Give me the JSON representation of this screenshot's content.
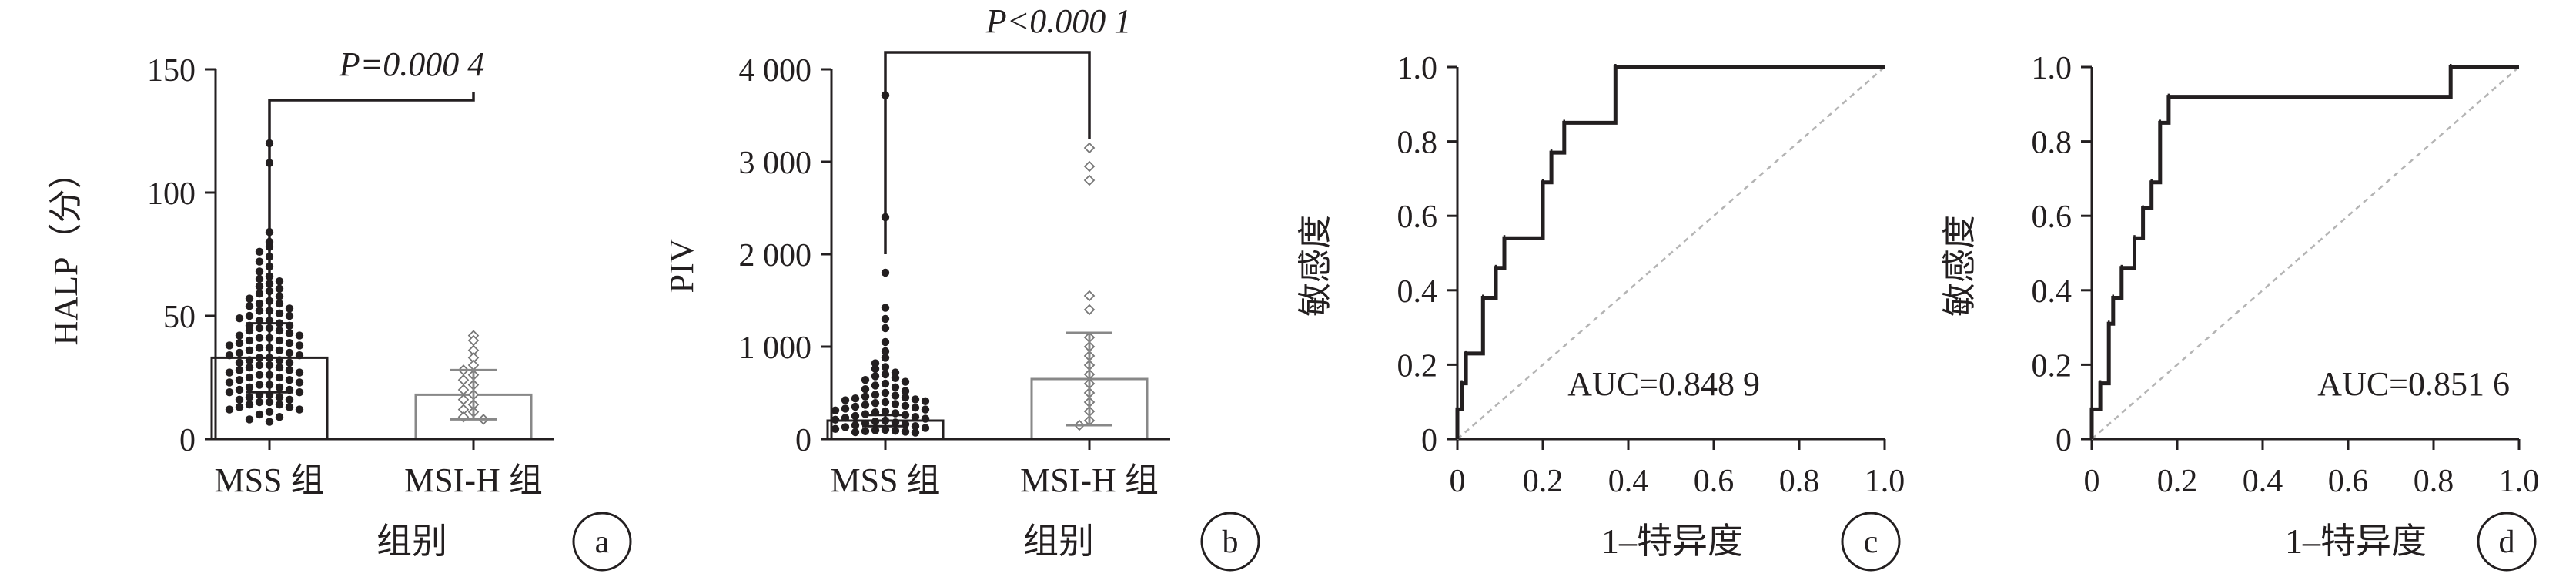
{
  "figure": {
    "background": "#ffffff",
    "ink": "#231f20",
    "diag_color": "#b4b4b4"
  },
  "chart_data": [
    {
      "type": "bar",
      "panel_label": "a",
      "ylabel": "HALP（分）",
      "xlabel": "组别",
      "categories": [
        "MSS 组",
        "MSI-H 组"
      ],
      "values": [
        33,
        18
      ],
      "error_sd": [
        14,
        10
      ],
      "ylim": [
        0,
        150
      ],
      "yticks": [
        0,
        50,
        100,
        150
      ],
      "ytick_labels": [
        "0",
        "50",
        "100",
        "150"
      ],
      "annotation": "P=0.000 4",
      "points": [
        {
          "series": "MSS 组",
          "marker": "filled-dot",
          "values": [
            120,
            112,
            84,
            80,
            78,
            76,
            74,
            72,
            70,
            68,
            66,
            65,
            64,
            63,
            62,
            61,
            60,
            59,
            58,
            57,
            56,
            55,
            55,
            54,
            53,
            52,
            52,
            51,
            50,
            50,
            49,
            48,
            48,
            47,
            46,
            46,
            45,
            45,
            44,
            44,
            43,
            42,
            42,
            41,
            41,
            40,
            40,
            39,
            39,
            38,
            38,
            37,
            37,
            36,
            36,
            35,
            35,
            34,
            34,
            33,
            33,
            32,
            32,
            31,
            31,
            30,
            30,
            29,
            29,
            28,
            28,
            27,
            27,
            26,
            26,
            25,
            25,
            24,
            24,
            23,
            23,
            22,
            22,
            21,
            21,
            20,
            20,
            19,
            19,
            18,
            18,
            17,
            17,
            16,
            16,
            15,
            15,
            14,
            14,
            13,
            13,
            12,
            12,
            11,
            10,
            9,
            8,
            7
          ]
        },
        {
          "series": "MSI-H 组",
          "marker": "open-diamond",
          "values": [
            42,
            40,
            36,
            33,
            30,
            28,
            26,
            24,
            22,
            20,
            18,
            16,
            14,
            12,
            11,
            9,
            8
          ]
        }
      ]
    },
    {
      "type": "bar",
      "panel_label": "b",
      "ylabel": "PIV",
      "xlabel": "组别",
      "categories": [
        "MSS 组",
        "MSI-H 组"
      ],
      "values": [
        200,
        650
      ],
      "error_sd": [
        60,
        500
      ],
      "ylim": [
        0,
        4000
      ],
      "yticks": [
        0,
        1000,
        2000,
        3000,
        4000
      ],
      "ytick_labels": [
        "0",
        "1 000",
        "2 000",
        "3 000",
        "4 000"
      ],
      "annotation": "P<0.000 1",
      "points": [
        {
          "series": "MSS 组",
          "marker": "filled-dot",
          "values": [
            3720,
            2400,
            1800,
            1420,
            1300,
            1200,
            1050,
            950,
            880,
            820,
            780,
            760,
            720,
            700,
            680,
            660,
            640,
            620,
            600,
            580,
            560,
            540,
            520,
            500,
            480,
            470,
            460,
            450,
            440,
            430,
            420,
            410,
            400,
            390,
            380,
            370,
            360,
            350,
            340,
            330,
            320,
            310,
            300,
            290,
            280,
            270,
            260,
            250,
            240,
            230,
            220,
            210,
            200,
            190,
            180,
            170,
            160,
            150,
            140,
            130,
            120,
            110,
            100,
            95,
            90,
            85,
            80,
            75,
            70
          ]
        },
        {
          "series": "MSI-H 组",
          "marker": "open-diamond",
          "values": [
            3150,
            2950,
            2800,
            1550,
            1400,
            1100,
            1000,
            900,
            800,
            700,
            600,
            500,
            400,
            300,
            200,
            150
          ]
        }
      ]
    },
    {
      "type": "line",
      "panel_label": "c",
      "ylabel": "敏感度",
      "xlabel": "1–特异度",
      "xlim": [
        0,
        1
      ],
      "ylim": [
        0,
        1
      ],
      "xtick_labels": [
        "0",
        "0.2",
        "0.4",
        "0.6",
        "0.8",
        "1.0"
      ],
      "ytick_labels": [
        "0",
        "0.2",
        "0.4",
        "0.6",
        "0.8",
        "1.0"
      ],
      "annotation": "AUC=0.848 9",
      "series": [
        {
          "x": [
            0,
            0,
            0.01,
            0.01,
            0.02,
            0.02,
            0.06,
            0.06,
            0.09,
            0.09,
            0.11,
            0.11,
            0.2,
            0.2,
            0.22,
            0.22,
            0.25,
            0.25,
            0.37,
            0.37,
            1.0
          ],
          "y": [
            0,
            0.08,
            0.08,
            0.15,
            0.15,
            0.23,
            0.23,
            0.38,
            0.38,
            0.46,
            0.46,
            0.54,
            0.54,
            0.69,
            0.69,
            0.77,
            0.77,
            0.85,
            0.85,
            1.0,
            1.0
          ]
        }
      ]
    },
    {
      "type": "line",
      "panel_label": "d",
      "ylabel": "敏感度",
      "xlabel": "1–特异度",
      "xlim": [
        0,
        1
      ],
      "ylim": [
        0,
        1
      ],
      "xtick_labels": [
        "0",
        "0.2",
        "0.4",
        "0.6",
        "0.8",
        "1.0"
      ],
      "ytick_labels": [
        "0",
        "0.2",
        "0.4",
        "0.6",
        "0.8",
        "1.0"
      ],
      "annotation": "AUC=0.851 6",
      "series": [
        {
          "x": [
            0,
            0,
            0.02,
            0.02,
            0.04,
            0.04,
            0.05,
            0.05,
            0.07,
            0.07,
            0.1,
            0.1,
            0.12,
            0.12,
            0.14,
            0.14,
            0.16,
            0.16,
            0.18,
            0.18,
            0.84,
            0.84,
            1.0
          ],
          "y": [
            0,
            0.08,
            0.08,
            0.15,
            0.15,
            0.31,
            0.31,
            0.38,
            0.38,
            0.46,
            0.46,
            0.54,
            0.54,
            0.62,
            0.62,
            0.69,
            0.69,
            0.85,
            0.85,
            0.92,
            0.92,
            1.0,
            1.0
          ]
        }
      ]
    }
  ]
}
